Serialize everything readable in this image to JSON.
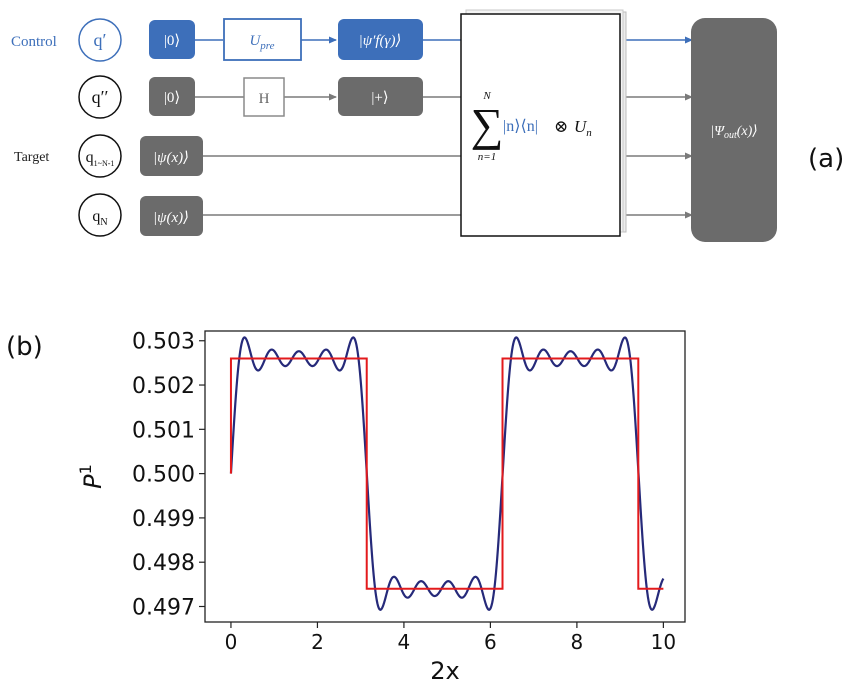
{
  "colors": {
    "blue": "#3d6fba",
    "gray_box": "#6b6b6b",
    "line_gray": "#7a7a7a",
    "curve_navy": "#262a7a",
    "curve_red": "#e31a1c",
    "big_box": "#6b6b6b"
  },
  "panel_a": {
    "label": "(a)",
    "row_labels": {
      "control": "Control",
      "target": "Target"
    },
    "qubits": {
      "q_prime": "q′",
      "q_dprime": "q′′",
      "q_mid_main": "q",
      "q_mid_sub": "1~N-1",
      "q_n_main": "q",
      "q_n_sub": "N"
    },
    "gates": {
      "ket0_control": "|0⟩",
      "upre_main": "U",
      "upre_sub": "pre",
      "psi_f": "|ψ′f(γ)⟩",
      "ket0_second": "|0⟩",
      "hadamard": "H",
      "ket_plus": "|+⟩",
      "psi_target1": "|ψ(x)⟩",
      "psi_target2": "|ψ(x)⟩"
    },
    "sum_block": {
      "sigma": "∑",
      "upper": "N",
      "lower": "n=1",
      "projector": "|n⟩⟨n|",
      "otimes": "⊗",
      "u_main": "U",
      "u_sub": "n"
    },
    "output": {
      "ket_open": "|Ψ",
      "sub": "out",
      "ket_close": "(x)⟩"
    }
  },
  "panel_b": {
    "label": "(b)"
  },
  "chart_data": {
    "type": "line",
    "title": "",
    "xlabel": "2x",
    "ylabel_main": "P",
    "ylabel_sup": "1",
    "xlim": [
      -0.6,
      10.5
    ],
    "ylim": [
      0.49665,
      0.50322
    ],
    "xticks": [
      0,
      2,
      4,
      6,
      8,
      10
    ],
    "xtick_labels": [
      "0",
      "2",
      "4",
      "6",
      "8",
      "10"
    ],
    "yticks": [
      0.497,
      0.498,
      0.499,
      0.5,
      0.501,
      0.502,
      0.503
    ],
    "ytick_labels": [
      "0.497",
      "0.498",
      "0.499",
      "0.500",
      "0.501",
      "0.502",
      "0.503"
    ],
    "grid": false,
    "series": [
      {
        "kind": "fourier_square_wave",
        "description_color": "navy",
        "offset": 0.5,
        "amplitude": 0.0026,
        "harmonics": 9,
        "x_range": [
          0,
          10
        ],
        "color": "#262a7a"
      },
      {
        "kind": "step",
        "color": "#e31a1c",
        "x": [
          0,
          0,
          3.14,
          3.14,
          6.28,
          6.28,
          9.42,
          9.42,
          10
        ],
        "y": [
          0.5,
          0.5026,
          0.5026,
          0.4974,
          0.4974,
          0.5026,
          0.5026,
          0.4974,
          0.4974
        ]
      }
    ]
  }
}
